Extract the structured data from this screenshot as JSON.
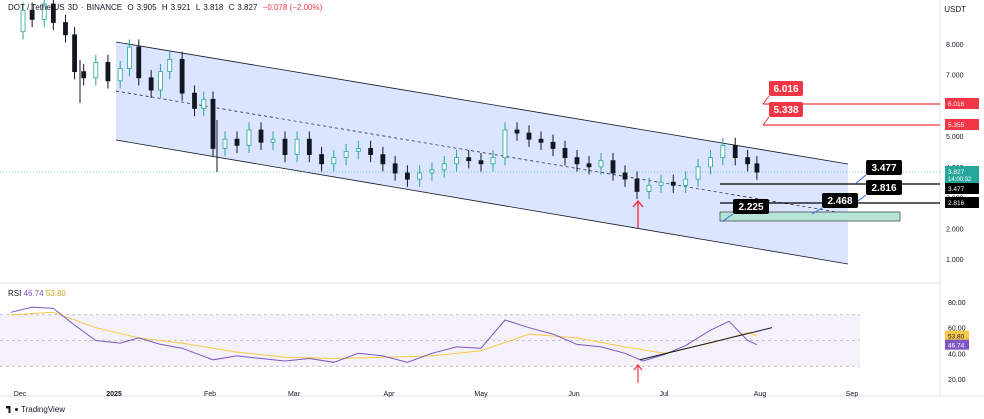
{
  "header": {
    "symbol": "DOT / TetherUS",
    "interval": "3D",
    "exchange": "BINANCE",
    "open_label": "O",
    "open": "3.905",
    "high_label": "H",
    "high": "3.921",
    "low_label": "L",
    "low": "3.818",
    "close_label": "C",
    "close": "3.827",
    "change": "−0.078 (−2.00%)"
  },
  "unit": "USDT",
  "branding": "TradingView",
  "colors": {
    "up": "#26a69a",
    "down": "#131722",
    "channel_fill": "#cfdcff",
    "target_red": "#f23645",
    "level_black": "#000000",
    "rsi_line": "#7e57c2",
    "rsi_ma": "#f7c948",
    "zone_green": "#b7e4d4",
    "arrow_red": "#f23645"
  },
  "chart_data": [
    {
      "type": "candlestick",
      "x_ticks": [
        "Dec",
        "2025",
        "Feb",
        "Mar",
        "Apr",
        "May",
        "Jun",
        "Jul",
        "Aug",
        "Sep"
      ],
      "y_ticks": [
        "8.000",
        "7.000",
        "6.000",
        "5.000",
        "4.000",
        "3.000",
        "2.000",
        "1.000"
      ],
      "ylim": [
        0.7,
        9.4
      ],
      "close_path": [
        [
          "2024-11-28",
          8.4
        ],
        [
          "2024-12-02",
          9.1
        ],
        [
          "2024-12-05",
          8.8
        ],
        [
          "2024-12-09",
          9.3
        ],
        [
          "2024-12-12",
          8.7
        ],
        [
          "2024-12-16",
          8.3
        ],
        [
          "2024-12-19",
          7.1
        ],
        [
          "2024-12-22",
          6.9
        ],
        [
          "2024-12-26",
          7.4
        ],
        [
          "2024-12-30",
          6.8
        ],
        [
          "2025-01-03",
          7.2
        ],
        [
          "2025-01-06",
          7.9
        ],
        [
          "2025-01-09",
          6.9
        ],
        [
          "2025-01-13",
          6.5
        ],
        [
          "2025-01-16",
          7.1
        ],
        [
          "2025-01-19",
          7.5
        ],
        [
          "2025-01-23",
          6.4
        ],
        [
          "2025-01-27",
          5.9
        ],
        [
          "2025-01-30",
          6.2
        ],
        [
          "2025-02-02",
          4.6
        ],
        [
          "2025-02-06",
          4.9
        ],
        [
          "2025-02-10",
          4.7
        ],
        [
          "2025-02-14",
          5.2
        ],
        [
          "2025-02-18",
          4.8
        ],
        [
          "2025-02-22",
          4.9
        ],
        [
          "2025-02-26",
          4.4
        ],
        [
          "2025-03-02",
          4.9
        ],
        [
          "2025-03-06",
          4.4
        ],
        [
          "2025-03-10",
          4.1
        ],
        [
          "2025-03-14",
          4.3
        ],
        [
          "2025-03-18",
          4.5
        ],
        [
          "2025-03-22",
          4.6
        ],
        [
          "2025-03-26",
          4.4
        ],
        [
          "2025-03-30",
          4.1
        ],
        [
          "2025-04-03",
          3.8
        ],
        [
          "2025-04-07",
          3.6
        ],
        [
          "2025-04-11",
          3.8
        ],
        [
          "2025-04-15",
          3.9
        ],
        [
          "2025-04-19",
          4.1
        ],
        [
          "2025-04-23",
          4.3
        ],
        [
          "2025-04-27",
          4.2
        ],
        [
          "2025-05-01",
          4.1
        ],
        [
          "2025-05-05",
          4.3
        ],
        [
          "2025-05-09",
          5.2
        ],
        [
          "2025-05-13",
          5.1
        ],
        [
          "2025-05-17",
          4.9
        ],
        [
          "2025-05-21",
          4.8
        ],
        [
          "2025-05-25",
          4.6
        ],
        [
          "2025-05-29",
          4.3
        ],
        [
          "2025-06-02",
          4.1
        ],
        [
          "2025-06-06",
          4.0
        ],
        [
          "2025-06-10",
          4.2
        ],
        [
          "2025-06-14",
          3.8
        ],
        [
          "2025-06-18",
          3.6
        ],
        [
          "2025-06-22",
          3.2
        ],
        [
          "2025-06-26",
          3.4
        ],
        [
          "2025-06-30",
          3.5
        ],
        [
          "2025-07-04",
          3.4
        ],
        [
          "2025-07-08",
          3.6
        ],
        [
          "2025-07-12",
          4.0
        ],
        [
          "2025-07-16",
          4.3
        ],
        [
          "2025-07-20",
          4.7
        ],
        [
          "2025-07-24",
          4.3
        ],
        [
          "2025-07-28",
          4.1
        ],
        [
          "2025-07-31",
          3.83
        ]
      ],
      "price_labels": [
        {
          "value": "6.016",
          "color": "red"
        },
        {
          "value": "5.355",
          "color": "red"
        },
        {
          "value": "3.827",
          "sub": "14:00:32",
          "color": "green"
        },
        {
          "value": "3.477",
          "color": "black"
        },
        {
          "value": "2.816",
          "color": "black"
        }
      ],
      "annotations": [
        "6.016",
        "5.338",
        "3.477",
        "2.816",
        "2.468",
        "2.225"
      ],
      "drawings": [
        "descending channel",
        "channel midline",
        "support zone",
        "red up arrow"
      ]
    },
    {
      "type": "line",
      "title": "RSI",
      "series": [
        {
          "name": "RSI",
          "last": "46.74"
        },
        {
          "name": "RSI MA",
          "last": "53.80"
        }
      ],
      "y_ticks": [
        "80.00",
        "60.00",
        "40.00",
        "20.00"
      ],
      "price_labels": [
        "53.80",
        "46.74"
      ],
      "ylim": [
        15,
        85
      ],
      "rsi_path": [
        [
          "2024-11-28",
          72
        ],
        [
          "2024-12-05",
          76
        ],
        [
          "2024-12-12",
          75
        ],
        [
          "2024-12-19",
          62
        ],
        [
          "2024-12-26",
          50
        ],
        [
          "2025-01-03",
          48
        ],
        [
          "2025-01-09",
          52
        ],
        [
          "2025-01-16",
          47
        ],
        [
          "2025-01-23",
          44
        ],
        [
          "2025-02-02",
          35
        ],
        [
          "2025-02-10",
          38
        ],
        [
          "2025-02-18",
          36
        ],
        [
          "2025-02-26",
          34
        ],
        [
          "2025-03-06",
          36
        ],
        [
          "2025-03-14",
          33
        ],
        [
          "2025-03-22",
          40
        ],
        [
          "2025-03-30",
          38
        ],
        [
          "2025-04-07",
          33
        ],
        [
          "2025-04-15",
          40
        ],
        [
          "2025-04-23",
          45
        ],
        [
          "2025-05-01",
          44
        ],
        [
          "2025-05-09",
          66
        ],
        [
          "2025-05-17",
          60
        ],
        [
          "2025-05-25",
          55
        ],
        [
          "2025-06-02",
          47
        ],
        [
          "2025-06-10",
          45
        ],
        [
          "2025-06-18",
          40
        ],
        [
          "2025-06-24",
          34
        ],
        [
          "2025-07-01",
          39
        ],
        [
          "2025-07-08",
          46
        ],
        [
          "2025-07-16",
          58
        ],
        [
          "2025-07-22",
          65
        ],
        [
          "2025-07-28",
          50
        ],
        [
          "2025-07-31",
          46.74
        ]
      ],
      "ma_path": [
        [
          "2024-11-28",
          70
        ],
        [
          "2024-12-12",
          72
        ],
        [
          "2024-12-26",
          60
        ],
        [
          "2025-01-09",
          52
        ],
        [
          "2025-01-23",
          48
        ],
        [
          "2025-02-10",
          41
        ],
        [
          "2025-02-26",
          37
        ],
        [
          "2025-03-14",
          36
        ],
        [
          "2025-03-30",
          37
        ],
        [
          "2025-04-15",
          38
        ],
        [
          "2025-05-01",
          42
        ],
        [
          "2025-05-17",
          55
        ],
        [
          "2025-06-02",
          52
        ],
        [
          "2025-06-18",
          45
        ],
        [
          "2025-07-01",
          40
        ],
        [
          "2025-07-16",
          48
        ],
        [
          "2025-07-28",
          56
        ],
        [
          "2025-07-31",
          53.8
        ]
      ]
    }
  ]
}
